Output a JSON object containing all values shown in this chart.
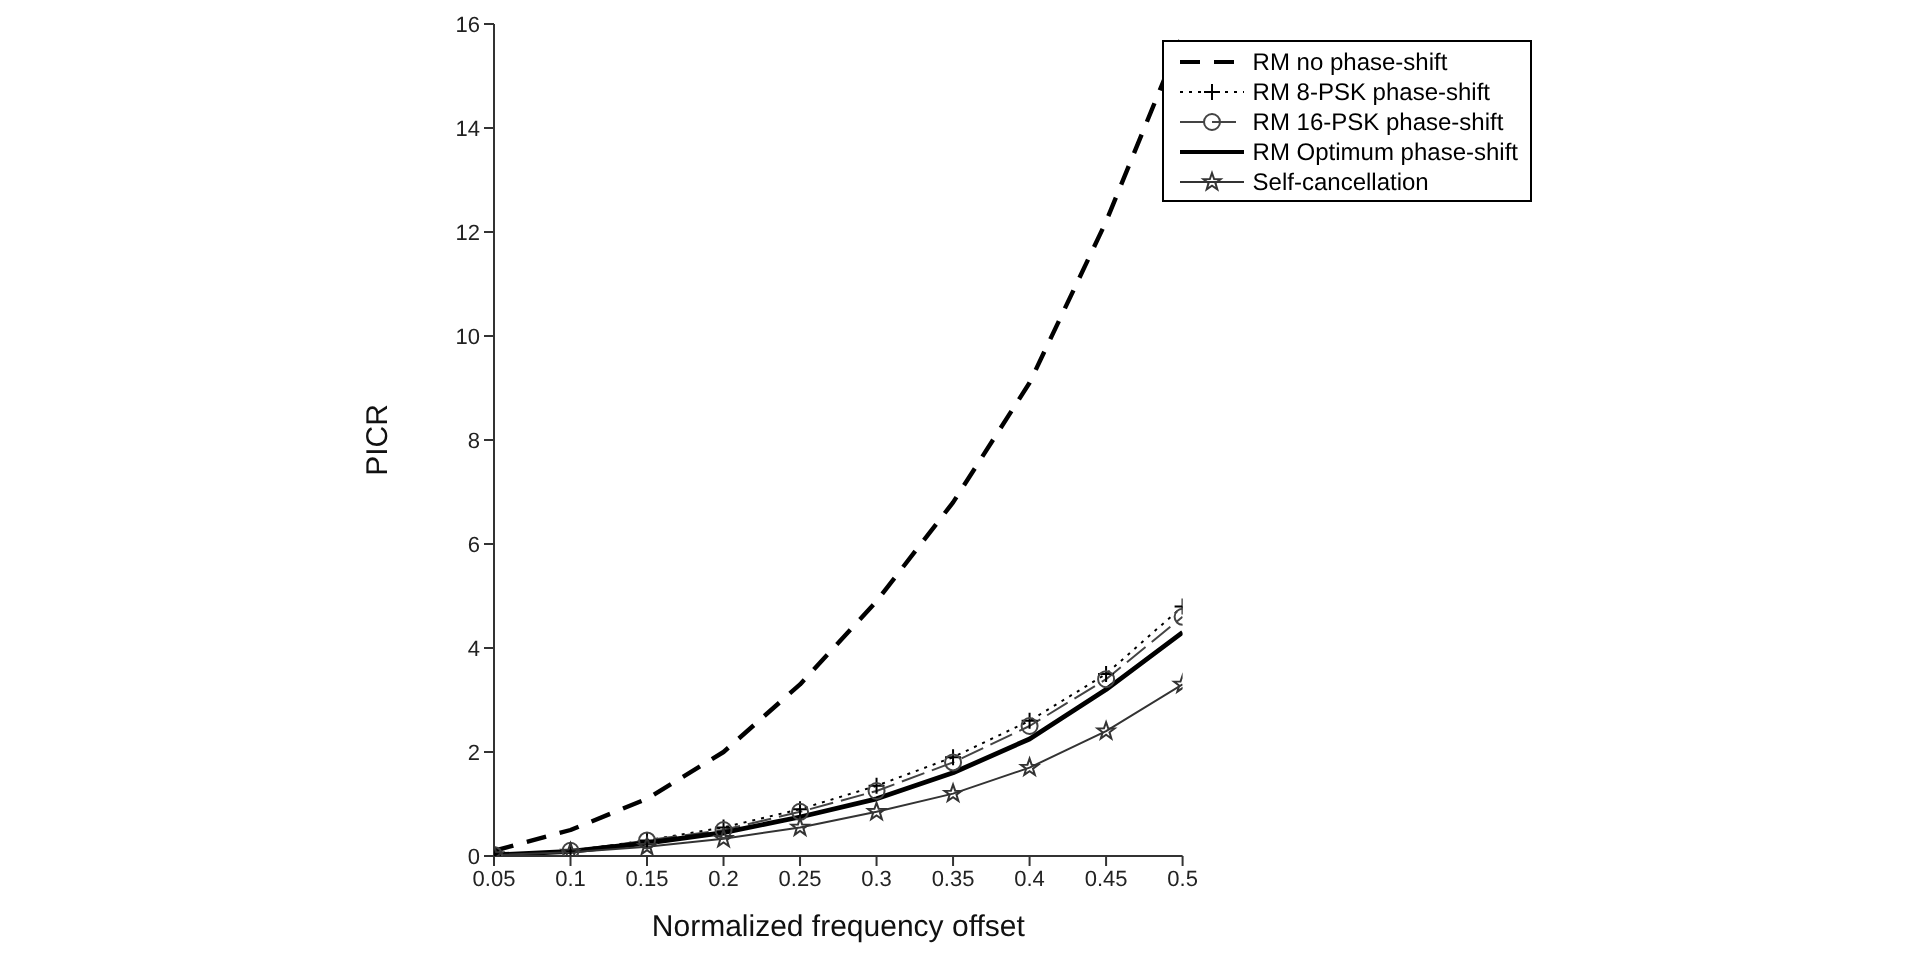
{
  "chart_data": {
    "type": "line",
    "xlabel": "Normalized frequency offset",
    "ylabel": "PICR",
    "x": [
      0.05,
      0.1,
      0.15,
      0.2,
      0.25,
      0.3,
      0.35,
      0.4,
      0.45,
      0.5
    ],
    "xlim": [
      0.05,
      0.5
    ],
    "xticks": [
      0.05,
      0.1,
      0.15,
      0.2,
      0.25,
      0.3,
      0.35,
      0.4,
      0.45,
      0.5
    ],
    "ylim": [
      0,
      16
    ],
    "yticks": [
      0,
      2,
      4,
      6,
      8,
      10,
      12,
      14,
      16
    ],
    "legend": "top right",
    "grid": false,
    "series": [
      {
        "name": "RM no phase-shift",
        "color": "#000000",
        "line_style": "dashed",
        "marker": "none",
        "values": [
          0.1,
          0.5,
          1.1,
          2.0,
          3.3,
          4.9,
          6.8,
          9.1,
          12.2,
          15.8
        ]
      },
      {
        "name": "RM 8-PSK phase-shift",
        "color": "#000000",
        "line_style": "dotted",
        "marker": "cross",
        "values": [
          0.02,
          0.1,
          0.3,
          0.55,
          0.9,
          1.35,
          1.9,
          2.6,
          3.5,
          4.8
        ]
      },
      {
        "name": "RM 16-PSK phase-shift",
        "color": "#444444",
        "line_style": "dashed",
        "marker": "circle",
        "values": [
          0.02,
          0.1,
          0.3,
          0.5,
          0.85,
          1.25,
          1.8,
          2.5,
          3.4,
          4.6
        ]
      },
      {
        "name": "RM Optimum phase-shift",
        "color": "#000000",
        "line_style": "solid",
        "marker": "none",
        "values": [
          0.02,
          0.09,
          0.25,
          0.45,
          0.75,
          1.1,
          1.6,
          2.25,
          3.2,
          4.3
        ]
      },
      {
        "name": "Self-cancellation",
        "color": "#333333",
        "line_style": "solid",
        "marker": "star",
        "values": [
          0.02,
          0.07,
          0.18,
          0.33,
          0.55,
          0.85,
          1.2,
          1.7,
          2.4,
          3.3
        ]
      }
    ]
  }
}
